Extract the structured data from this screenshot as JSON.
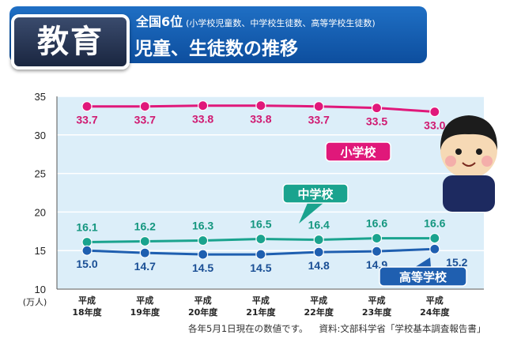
{
  "header": {
    "badge": "教育",
    "rank": "全国6位",
    "rank_note": "(小学校児童数、中学校生徒数、高等学校生徒数)",
    "subtitle": "児童、生徒数の推移"
  },
  "chart_data": {
    "type": "line",
    "categories": [
      [
        "平成",
        "18年度"
      ],
      [
        "平成",
        "19年度"
      ],
      [
        "平成",
        "20年度"
      ],
      [
        "平成",
        "21年度"
      ],
      [
        "平成",
        "22年度"
      ],
      [
        "平成",
        "23年度"
      ],
      [
        "平成",
        "24年度"
      ]
    ],
    "series": [
      {
        "name": "小学校",
        "values": [
          33.7,
          33.7,
          33.8,
          33.8,
          33.7,
          33.5,
          33.0
        ],
        "color": "#e0187a",
        "label_color": "#d01870"
      },
      {
        "name": "中学校",
        "values": [
          16.1,
          16.2,
          16.3,
          16.5,
          16.4,
          16.6,
          16.6
        ],
        "color": "#1aa38e",
        "label_color": "#14967f"
      },
      {
        "name": "高等学校",
        "values": [
          15.0,
          14.7,
          14.5,
          14.5,
          14.8,
          14.9,
          15.2
        ],
        "color": "#1f5fb0",
        "label_color": "#1a4f95"
      }
    ],
    "ylim": [
      10,
      35
    ],
    "yticks": [
      10,
      15,
      20,
      25,
      30,
      35
    ],
    "yunit": "(万人)",
    "grid": true,
    "plot_background": "#dceef9"
  },
  "footnote": {
    "date_note": "各年5月1日現在の数値です。",
    "source": "資料:文部科学省「学校基本調査報告書」"
  },
  "colors": {
    "header": "#1565c0",
    "badge": "#2a3a5c"
  }
}
